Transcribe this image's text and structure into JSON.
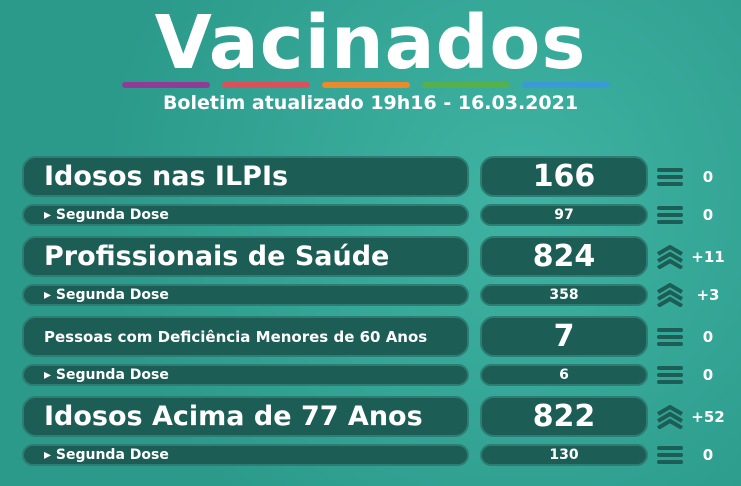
{
  "header": {
    "title": "Vacinados",
    "subtitle": "Boletim atualizado 19h16 - 16.03.2021"
  },
  "rows": [
    {
      "label": "Idosos nas ILPIs",
      "value": 166,
      "change": "0",
      "icon": "equal",
      "kind": "main"
    },
    {
      "label": "▸ Segunda Dose",
      "value": 97,
      "change": "0",
      "icon": "equal",
      "kind": "sub"
    },
    {
      "label": "Profissionais de Saúde",
      "value": 824,
      "change": "+11",
      "icon": "up",
      "kind": "main"
    },
    {
      "label": "▸ Segunda Dose",
      "value": 358,
      "change": "+3",
      "icon": "up",
      "kind": "sub"
    },
    {
      "label": "Pessoas com Deficiência Menores de 60 Anos",
      "value": 7,
      "change": "0",
      "icon": "equal",
      "kind": "main-small"
    },
    {
      "label": "▸ Segunda Dose",
      "value": 6,
      "change": "0",
      "icon": "equal",
      "kind": "sub"
    },
    {
      "label": "Idosos Acima de 77 Anos",
      "value": 822,
      "change": "+52",
      "icon": "up",
      "kind": "main"
    },
    {
      "label": "▸ Segunda Dose",
      "value": 130,
      "change": "0",
      "icon": "equal",
      "kind": "sub"
    }
  ]
}
